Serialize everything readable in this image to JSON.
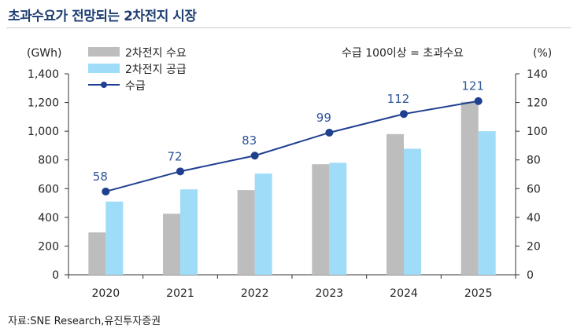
{
  "title": "초과수요가 전망되는 2차전지 시장",
  "source": "자료:SNE Research,유진투자증권",
  "colors": {
    "title": "#1f3f73",
    "demand": "#bdbdbd",
    "supply": "#9edcf8",
    "line": "#1f3f8f",
    "label": "#2f5597",
    "axis": "#333333"
  },
  "chart_data": {
    "type": "bar",
    "categories": [
      "2020",
      "2021",
      "2022",
      "2023",
      "2024",
      "2025"
    ],
    "series": [
      {
        "name": "2차전지 수요",
        "type": "bar",
        "axis": "left",
        "values": [
          295,
          425,
          590,
          770,
          980,
          1205
        ]
      },
      {
        "name": "2차전지 공급",
        "type": "bar",
        "axis": "left",
        "values": [
          510,
          595,
          705,
          780,
          878,
          1000
        ]
      },
      {
        "name": "수급",
        "type": "line",
        "axis": "right",
        "values": [
          58,
          72,
          83,
          99,
          112,
          121
        ],
        "data_labels": [
          "58",
          "72",
          "83",
          "99",
          "112",
          "121"
        ]
      }
    ],
    "ylabel": "(GWh)",
    "y2label": "(%)",
    "ylim": [
      0,
      1400
    ],
    "y2lim": [
      0,
      140
    ],
    "yticks": [
      0,
      200,
      400,
      600,
      800,
      1000,
      1200,
      1400
    ],
    "yticks_labels": [
      "0",
      "200",
      "400",
      "600",
      "800",
      "1,000",
      "1,200",
      "1,400"
    ],
    "y2ticks": [
      0,
      20,
      40,
      60,
      80,
      100,
      120,
      140
    ],
    "y2ticks_labels": [
      "0",
      "20",
      "40",
      "60",
      "80",
      "100",
      "120",
      "140"
    ],
    "annotation": "수급 100이상 = 초과수요",
    "legend_position": "top-left",
    "grid": false
  }
}
